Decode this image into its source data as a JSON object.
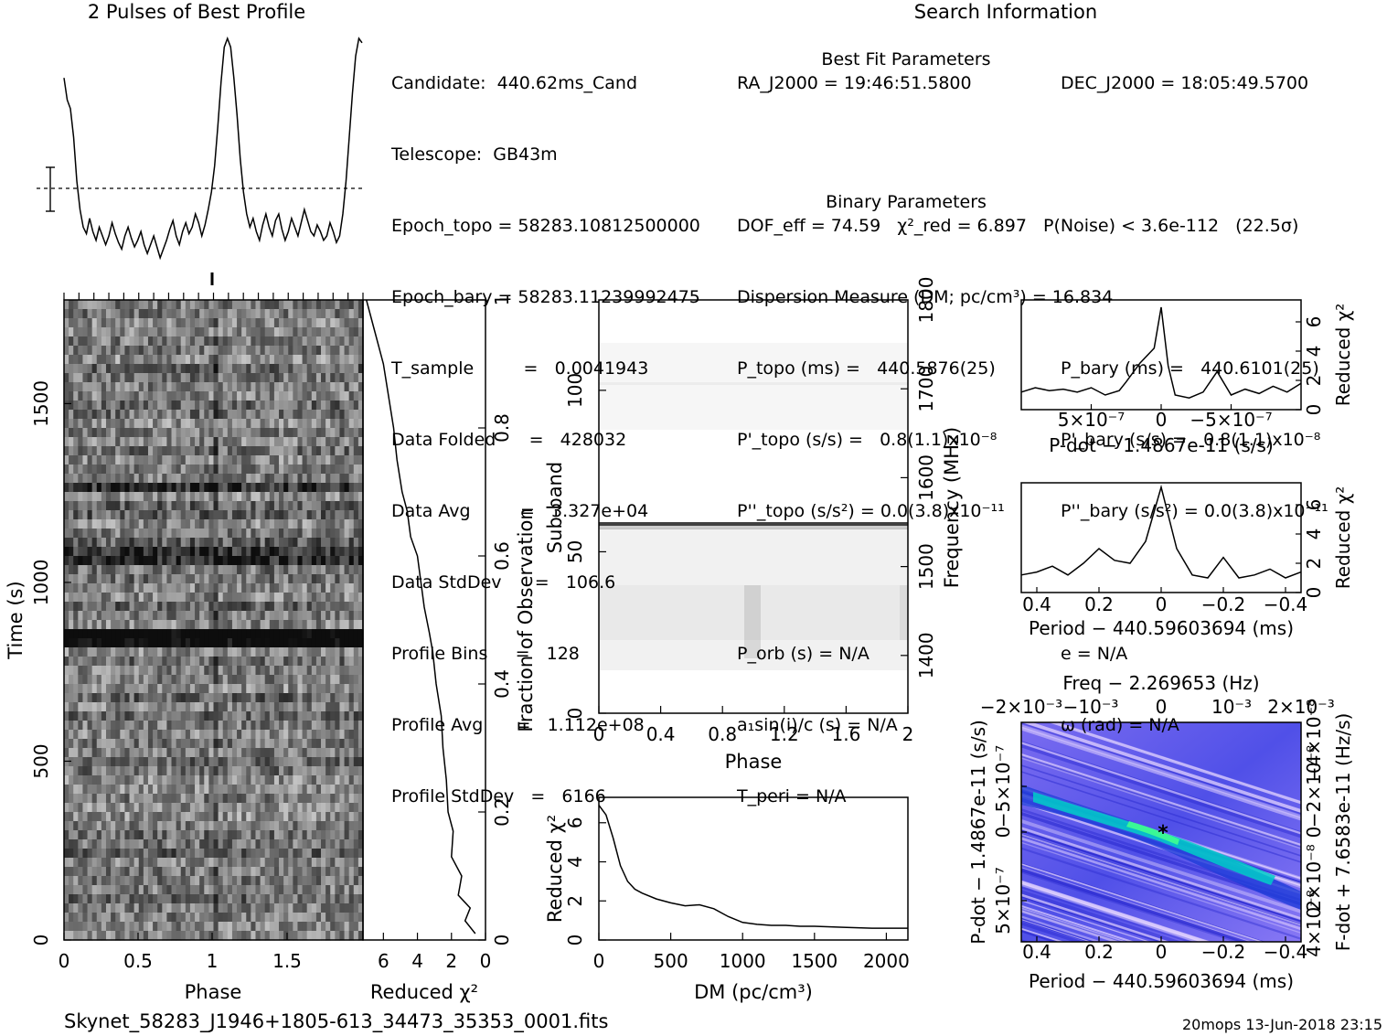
{
  "header": {
    "profile_title": "2 Pulses of Best Profile",
    "search_title": "Search Information"
  },
  "candidate_info": [
    "Candidate:  440.62ms_Cand",
    "Telescope:  GB43m",
    "Epoch_topo = 58283.10812500000",
    "Epoch_bary = 58283.11239992475",
    "T_sample         =   0.0041943",
    "Data Folded      =   428032",
    "Data Avg         =   3.327e+04",
    "Data StdDev      =   106.6",
    "Profile Bins     =   128",
    "Profile Avg      =   1.112e+08",
    "Profile StdDev   =   6166"
  ],
  "best_fit": {
    "ra": "RA_J2000 = 19:46:51.5800",
    "dec": "DEC_J2000 = 18:05:49.5700",
    "section_title": "Best Fit Parameters",
    "dof_line": "DOF_eff = 74.59   χ²_red = 6.897   P(Noise) < 3.6e-112   (22.5σ)",
    "dm_line": "Dispersion Measure (DM; pc/cm³) = 16.834",
    "p_topo": "P_topo (ms) =   440.5876(25)",
    "p_bary": "P_bary (ms) =   440.6101(25)",
    "pd_topo": "P'_topo (s/s) =   0.8(1.1)x10⁻⁸",
    "pd_bary": "P'_bary (s/s) =   0.8(1.1)x10⁻⁸",
    "pdd_topo": "P''_topo (s/s²) = 0.0(3.8)x10⁻¹¹",
    "pdd_bary": "P''_bary (s/s²) = 0.0(3.8)x10⁻¹¹"
  },
  "binary": {
    "section_title": "Binary Parameters",
    "p_orb": "P_orb (s) = N/A",
    "e": "e = N/A",
    "a1sini": "a₁sin(i)/c (s) = N/A",
    "omega": "ω (rad) = N/A",
    "t_peri": "T_peri = N/A"
  },
  "footer": {
    "filename": "Skynet_58283_J1946+1805-613_34473_35353_0001.fits",
    "stamp": "20mops 13-Jun-2018 23:15"
  },
  "colors": {
    "axis": "#000000",
    "trace": "#000000",
    "dm_color_low": "#1e32d2",
    "dm_color_mid": "#9aa0ff",
    "dm_color_hi": "#00ffb0"
  },
  "chart_data": [
    {
      "id": "profile",
      "type": "line",
      "x_range": [
        0,
        2
      ],
      "values": [
        0.82,
        0.72,
        0.68,
        0.55,
        0.35,
        0.22,
        0.14,
        0.11,
        0.18,
        0.12,
        0.08,
        0.14,
        0.1,
        0.06,
        0.1,
        0.16,
        0.11,
        0.07,
        0.04,
        0.1,
        0.14,
        0.09,
        0.05,
        0.08,
        0.12,
        0.06,
        0.02,
        0.06,
        0.1,
        0.05,
        0.0,
        0.04,
        0.08,
        0.13,
        0.17,
        0.1,
        0.06,
        0.12,
        0.16,
        0.11,
        0.14,
        0.2,
        0.16,
        0.1,
        0.15,
        0.22,
        0.3,
        0.42,
        0.6,
        0.8,
        0.96,
        1.0,
        0.96,
        0.82,
        0.65,
        0.45,
        0.3,
        0.2,
        0.14,
        0.18,
        0.12,
        0.08,
        0.15,
        0.2,
        0.14,
        0.1,
        0.17,
        0.2,
        0.13,
        0.08,
        0.12,
        0.18,
        0.14,
        0.1,
        0.16,
        0.22,
        0.17,
        0.12,
        0.1,
        0.15,
        0.12,
        0.08,
        0.1,
        0.16,
        0.12,
        0.07,
        0.1,
        0.2,
        0.35,
        0.55,
        0.75,
        0.92,
        1.0,
        0.98
      ]
    },
    {
      "id": "time_phase",
      "type": "heatmap",
      "xlabel": "Phase",
      "ylabel": "Time (s)",
      "x_ticks": [
        "0",
        "0.5",
        "1",
        "1.5"
      ],
      "y_ticks": [
        "0",
        "500",
        "1000",
        "1500"
      ],
      "xlim": [
        0,
        2
      ],
      "ylim": [
        0,
        1790
      ]
    },
    {
      "id": "chi2_vs_time",
      "type": "line",
      "xlabel": "Reduced χ²",
      "ylabel": "Fraction of Observation",
      "x_ticks": [
        "6",
        "4",
        "2",
        "0"
      ],
      "y_ticks": [
        "0",
        "0.2",
        "0.4",
        "0.6",
        "0.8",
        "1"
      ],
      "xlim": [
        7.2,
        0
      ],
      "ylim": [
        0,
        1
      ],
      "points": [
        [
          0.6,
          0.01
        ],
        [
          1.2,
          0.03
        ],
        [
          0.9,
          0.05
        ],
        [
          1.6,
          0.07
        ],
        [
          1.4,
          0.1
        ],
        [
          2.0,
          0.13
        ],
        [
          1.9,
          0.17
        ],
        [
          2.2,
          0.2
        ],
        [
          2.3,
          0.25
        ],
        [
          2.5,
          0.3
        ],
        [
          2.6,
          0.35
        ],
        [
          2.9,
          0.4
        ],
        [
          3.1,
          0.45
        ],
        [
          3.3,
          0.48
        ],
        [
          3.6,
          0.52
        ],
        [
          3.8,
          0.56
        ],
        [
          4.0,
          0.6
        ],
        [
          4.4,
          0.63
        ],
        [
          4.6,
          0.67
        ],
        [
          4.9,
          0.7
        ],
        [
          5.2,
          0.75
        ],
        [
          5.4,
          0.8
        ],
        [
          5.7,
          0.85
        ],
        [
          6.0,
          0.9
        ],
        [
          6.5,
          0.95
        ],
        [
          6.8,
          0.98
        ],
        [
          7.0,
          1.0
        ]
      ]
    },
    {
      "id": "subband_phase",
      "type": "heatmap",
      "xlabel": "Phase",
      "ylabel": "Sub-band",
      "y2label": "Frequency (MHz)",
      "x_ticks": [
        "0",
        "0.4",
        "0.8",
        "1.2",
        "1.6",
        "2"
      ],
      "y_ticks": [
        "0",
        "50",
        "100"
      ],
      "y2_ticks": [
        "1400",
        "1500",
        "1600",
        "1700",
        "1800"
      ],
      "xlim": [
        0,
        2
      ],
      "ylim": [
        0,
        128
      ]
    },
    {
      "id": "chi2_vs_dm",
      "type": "line",
      "xlabel": "DM (pc/cm³)",
      "ylabel": "Reduced χ²",
      "x_ticks": [
        "0",
        "500",
        "1000",
        "1500",
        "2000"
      ],
      "y_ticks": [
        "0",
        "2",
        "4",
        "6"
      ],
      "xlim": [
        0,
        2150
      ],
      "ylim": [
        0,
        7.3
      ],
      "points": [
        [
          0,
          6.9
        ],
        [
          50,
          6.4
        ],
        [
          100,
          5.2
        ],
        [
          150,
          3.8
        ],
        [
          200,
          3.0
        ],
        [
          250,
          2.6
        ],
        [
          300,
          2.4
        ],
        [
          400,
          2.1
        ],
        [
          500,
          1.9
        ],
        [
          600,
          1.75
        ],
        [
          700,
          1.8
        ],
        [
          800,
          1.6
        ],
        [
          900,
          1.2
        ],
        [
          1000,
          0.9
        ],
        [
          1100,
          0.8
        ],
        [
          1200,
          0.75
        ],
        [
          1300,
          0.75
        ],
        [
          1400,
          0.7
        ],
        [
          1500,
          0.7
        ],
        [
          1700,
          0.65
        ],
        [
          1900,
          0.6
        ],
        [
          2150,
          0.6
        ]
      ]
    },
    {
      "id": "chi2_vs_pdot",
      "type": "line",
      "xlabel": "P-dot − 1.4867e-11 (s/s)",
      "ylabel": "Reduced χ²",
      "x_ticks": [
        "5×10⁻⁷",
        "0",
        "−5×10⁻⁷"
      ],
      "y_ticks": [
        "0",
        "2",
        "4",
        "6"
      ],
      "xlim": [
        1.0,
        -1.0
      ],
      "ylim": [
        0,
        7.5
      ],
      "points": [
        [
          1.0,
          1.2
        ],
        [
          0.9,
          1.5
        ],
        [
          0.8,
          1.3
        ],
        [
          0.7,
          1.4
        ],
        [
          0.6,
          1.2
        ],
        [
          0.5,
          1.5
        ],
        [
          0.4,
          1.0
        ],
        [
          0.3,
          1.3
        ],
        [
          0.25,
          1.9
        ],
        [
          0.15,
          3.2
        ],
        [
          0.05,
          4.2
        ],
        [
          0.0,
          7.0
        ],
        [
          -0.05,
          3.0
        ],
        [
          -0.1,
          1.0
        ],
        [
          -0.2,
          0.8
        ],
        [
          -0.3,
          1.2
        ],
        [
          -0.4,
          2.6
        ],
        [
          -0.5,
          1.0
        ],
        [
          -0.6,
          1.4
        ],
        [
          -0.7,
          1.1
        ],
        [
          -0.8,
          1.6
        ],
        [
          -0.9,
          1.2
        ],
        [
          -1.0,
          1.8
        ]
      ]
    },
    {
      "id": "chi2_vs_period",
      "type": "line",
      "xlabel": "Period − 440.59603694 (ms)",
      "ylabel": "Reduced χ²",
      "x_ticks": [
        "0.4",
        "0.2",
        "0",
        "−0.2",
        "−0.4"
      ],
      "y_ticks": [
        "0",
        "2",
        "4",
        "6"
      ],
      "xlim": [
        0.45,
        -0.45
      ],
      "ylim": [
        0,
        7.5
      ],
      "points": [
        [
          0.45,
          1.2
        ],
        [
          0.4,
          1.4
        ],
        [
          0.35,
          1.8
        ],
        [
          0.3,
          1.2
        ],
        [
          0.25,
          2.0
        ],
        [
          0.2,
          3.0
        ],
        [
          0.15,
          2.2
        ],
        [
          0.1,
          2.0
        ],
        [
          0.05,
          3.5
        ],
        [
          0.0,
          7.2
        ],
        [
          -0.05,
          3.0
        ],
        [
          -0.1,
          1.2
        ],
        [
          -0.15,
          1.0
        ],
        [
          -0.2,
          2.4
        ],
        [
          -0.25,
          1.0
        ],
        [
          -0.3,
          1.2
        ],
        [
          -0.35,
          1.6
        ],
        [
          -0.4,
          1.0
        ],
        [
          -0.45,
          1.4
        ]
      ]
    },
    {
      "id": "p_pdot_plane",
      "type": "heatmap",
      "title": "Freq − 2.269653 (Hz)",
      "xlabel": "Period − 440.59603694 (ms)",
      "ylabel": "P-dot − 1.4867e-11 (s/s)",
      "y2label": "F-dot + 7.6583e-11 (Hz/s)",
      "x_ticks": [
        "0.4",
        "0.2",
        "0",
        "−0.2",
        "−0.4"
      ],
      "x2_ticks": [
        "−2×10⁻³",
        "−10⁻³",
        "0",
        "10⁻³",
        "2×10⁻³"
      ],
      "y_ticks": [
        "−5×10⁻⁷",
        "0",
        "5×10⁻⁷"
      ],
      "y2_ticks": [
        "4×10⁻⁸",
        "2×10⁻⁸",
        "0",
        "−2×10⁻⁸",
        "−4×10⁻⁸"
      ]
    }
  ]
}
